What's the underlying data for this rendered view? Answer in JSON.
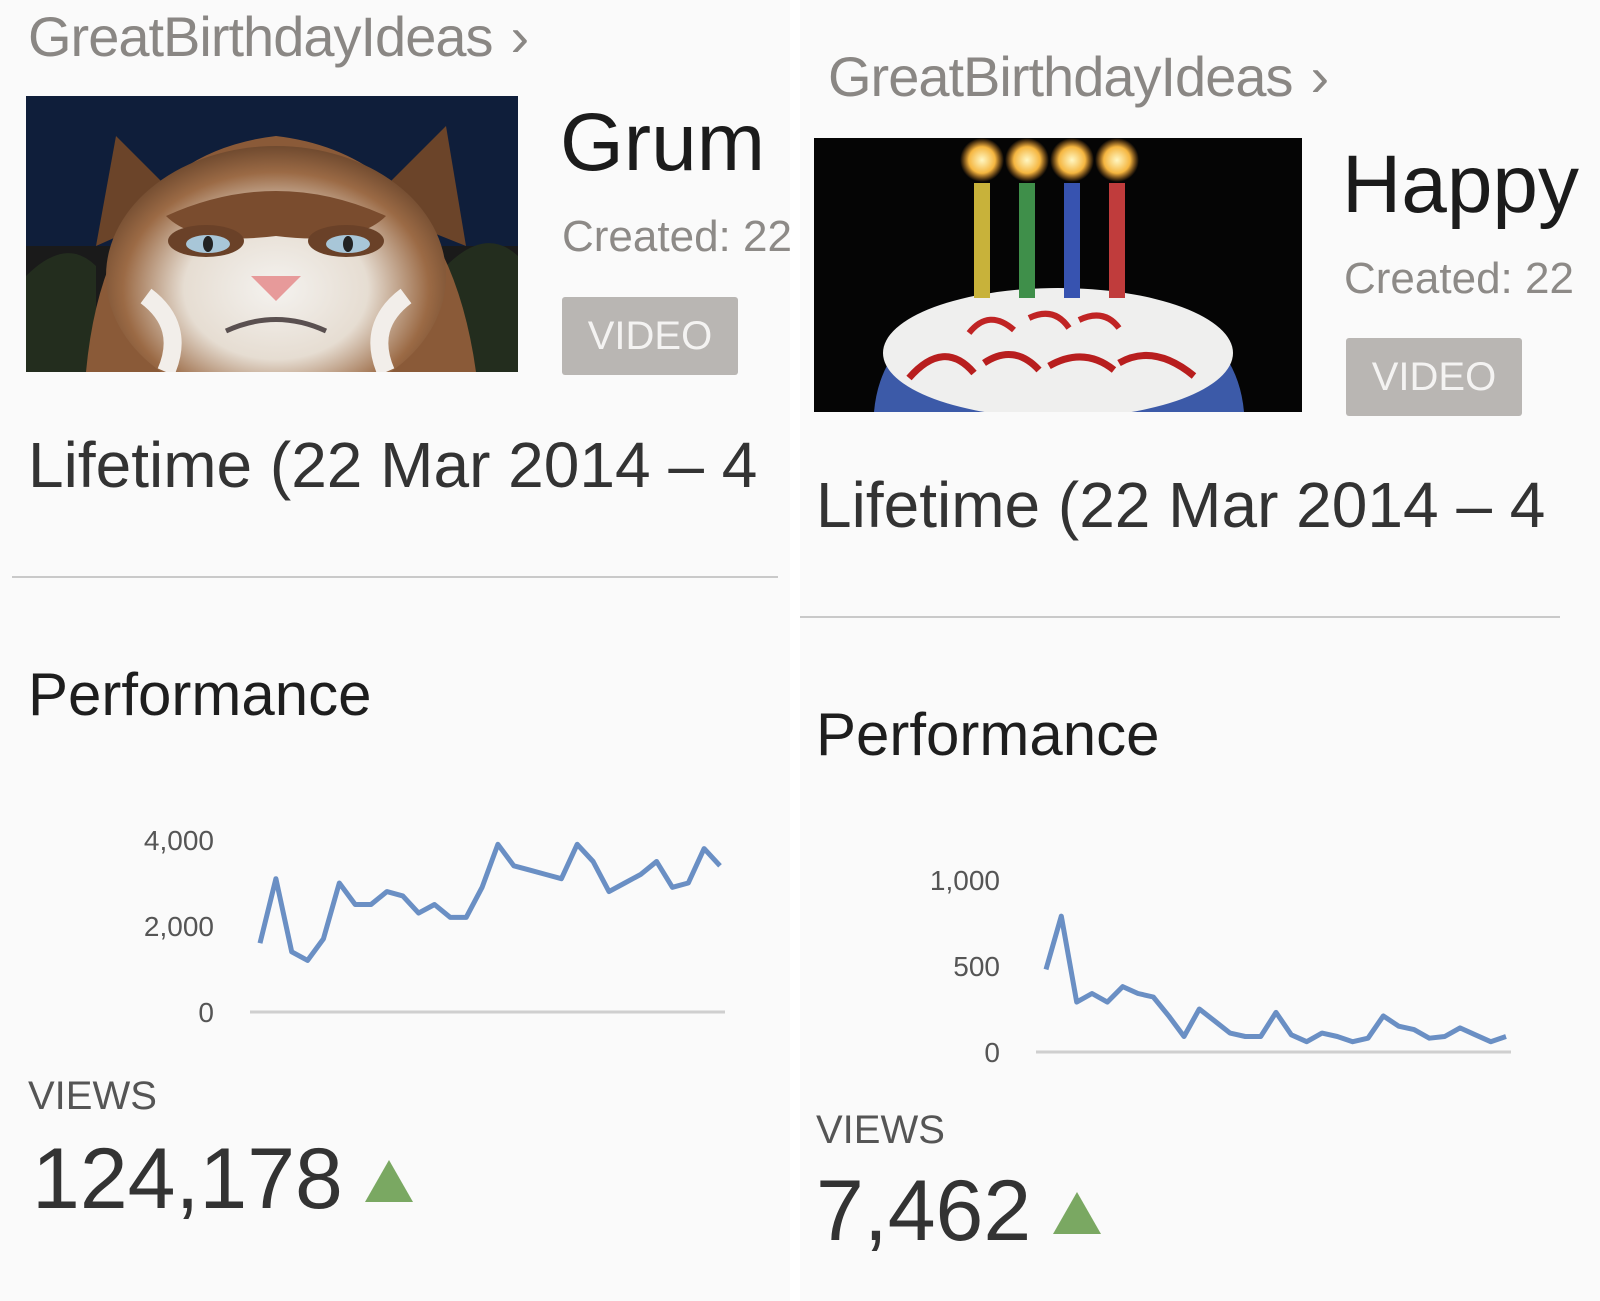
{
  "panels": [
    {
      "channel": "GreatBirthdayIdeas",
      "chevron": "›",
      "thumbnail_icon": "grumpy-cat-thumbnail",
      "title": "Grum",
      "created": "Created: 22",
      "badge": "VIDEO",
      "lifetime": "Lifetime (22 Mar 2014 – 4",
      "performance_title": "Performance",
      "views_label": "VIEWS",
      "views_value": "124,178",
      "trend_icon": "up-triangle-icon",
      "line_color": "#6a8fc4"
    },
    {
      "channel": "GreatBirthdayIdeas",
      "chevron": "›",
      "thumbnail_icon": "birthday-cake-thumbnail",
      "title": "Happy",
      "created": "Created: 22",
      "badge": "VIDEO",
      "lifetime": "Lifetime (22 Mar 2014 – 4",
      "performance_title": "Performance",
      "views_label": "VIEWS",
      "views_value": "7,462",
      "trend_icon": "up-triangle-icon",
      "line_color": "#6a8fc4"
    }
  ],
  "chart_data": [
    {
      "type": "line",
      "title": "",
      "xlabel": "",
      "ylabel": "",
      "ylim": [
        0,
        4000
      ],
      "yticks": [
        0,
        2000,
        4000
      ],
      "ytick_labels": [
        "0",
        "2,000",
        "4,000"
      ],
      "grid": false,
      "series": [
        {
          "values": [
            1600,
            3100,
            1400,
            1200,
            1700,
            3000,
            2500,
            2500,
            2800,
            2700,
            2300,
            2500,
            2200,
            2200,
            2900,
            3900,
            3400,
            3300,
            3200,
            3100,
            3900,
            3500,
            2800,
            3000,
            3200,
            3500,
            2900,
            3000,
            3800,
            3400
          ]
        }
      ]
    },
    {
      "type": "line",
      "title": "",
      "xlabel": "",
      "ylabel": "",
      "ylim": [
        0,
        1000
      ],
      "yticks": [
        0,
        500,
        1000
      ],
      "ytick_labels": [
        "0",
        "500",
        "1,000"
      ],
      "grid": false,
      "series": [
        {
          "values": [
            480,
            790,
            290,
            340,
            290,
            380,
            340,
            320,
            210,
            90,
            250,
            180,
            110,
            90,
            90,
            230,
            100,
            60,
            110,
            90,
            60,
            80,
            210,
            150,
            130,
            80,
            90,
            140,
            100,
            60,
            90
          ]
        }
      ]
    }
  ]
}
